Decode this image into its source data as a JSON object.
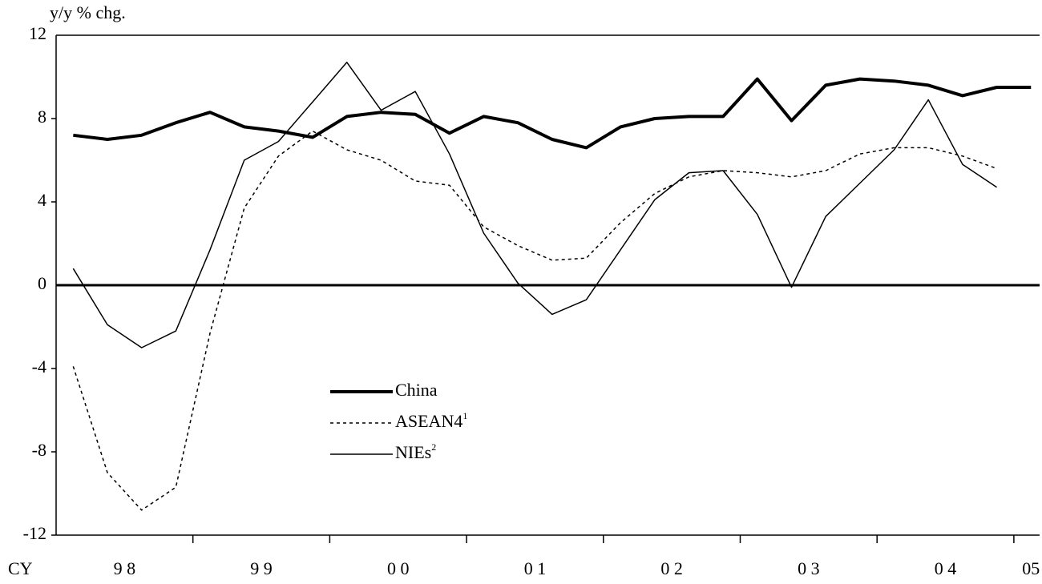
{
  "chart_data": {
    "type": "line",
    "y_label": "y/y % chg.",
    "x_prefix": "CY",
    "year_labels": [
      "9 8",
      "9 9",
      "0 0",
      "0 1",
      "0 2",
      "0 3",
      "0 4",
      "05"
    ],
    "categories": [
      null,
      null,
      null,
      null,
      null,
      null,
      null,
      null,
      null,
      null,
      null,
      null,
      null,
      null,
      null,
      null,
      null,
      null,
      null,
      null,
      null,
      null,
      null,
      null,
      null,
      null,
      null,
      null,
      null
    ],
    "ylim": [
      -12,
      12
    ],
    "yticks": [
      -12,
      -8,
      -4,
      0,
      4,
      8,
      12
    ],
    "series": [
      {
        "name": "China",
        "color": "#000000",
        "width": 4,
        "dash": "none",
        "values": [
          7.2,
          7.0,
          7.2,
          7.8,
          8.3,
          7.6,
          7.4,
          7.1,
          8.1,
          8.3,
          8.2,
          7.3,
          8.1,
          7.8,
          7.0,
          6.6,
          7.6,
          8.0,
          8.1,
          8.1,
          9.9,
          7.9,
          9.6,
          9.9,
          9.8,
          9.6,
          9.1,
          9.5,
          9.5
        ]
      },
      {
        "name": "ASEAN4",
        "footnote": "1",
        "color": "#000000",
        "width": 1.5,
        "dash": "4 4",
        "values": [
          -3.9,
          -9.0,
          -10.8,
          -9.7,
          -2.3,
          3.7,
          6.2,
          7.4,
          6.5,
          6.0,
          5.0,
          4.8,
          2.8,
          1.9,
          1.2,
          1.3,
          3.0,
          4.4,
          5.2,
          5.5,
          5.4,
          5.2,
          5.5,
          6.3,
          6.6,
          6.6,
          6.2,
          5.6,
          null
        ]
      },
      {
        "name": "NIEs",
        "footnote": "2",
        "color": "#000000",
        "width": 1.5,
        "dash": "none",
        "values": [
          0.8,
          -1.9,
          -3.0,
          -2.2,
          1.7,
          6.0,
          6.9,
          8.8,
          10.7,
          8.4,
          9.3,
          6.3,
          2.5,
          0.1,
          -1.4,
          -0.7,
          1.7,
          4.1,
          5.4,
          5.5,
          3.4,
          -0.1,
          3.3,
          4.9,
          6.5,
          8.9,
          5.8,
          4.7,
          null
        ]
      }
    ]
  }
}
